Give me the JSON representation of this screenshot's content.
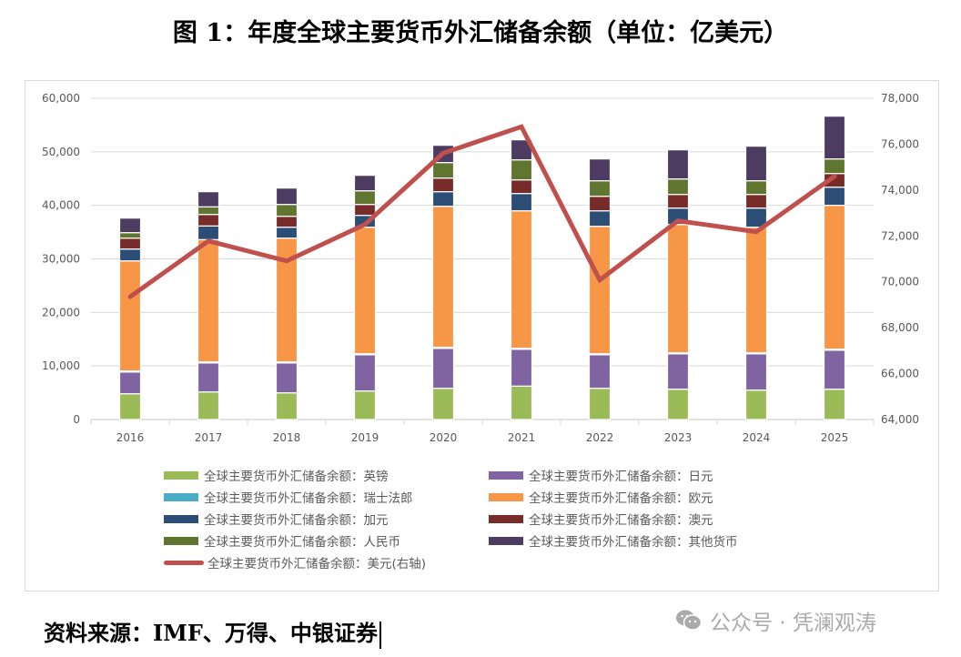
{
  "title": "图 1：年度全球主要货币外汇储备余额（单位：亿美元）",
  "source": "资料来源：IMF、万得、中银证券",
  "watermark": "公众号 · 凭澜观涛",
  "watermark_icon": "wechat-icon",
  "chart_data": {
    "type": "bar",
    "stacked": true,
    "title": "",
    "categories": [
      "2016",
      "2017",
      "2018",
      "2019",
      "2020",
      "2021",
      "2022",
      "2023",
      "2024",
      "2025"
    ],
    "ylim": [
      0,
      60000
    ],
    "yticks": [
      "0",
      "10,000",
      "20,000",
      "30,000",
      "40,000",
      "50,000",
      "60,000"
    ],
    "y2lim": [
      64000,
      78000
    ],
    "y2ticks": [
      "64,000",
      "66,000",
      "68,000",
      "70,000",
      "72,000",
      "74,000",
      "76,000",
      "78,000"
    ],
    "grid": true,
    "legend_placement": "bottom",
    "series": [
      {
        "name": "全球主要货币外汇储备余额：英镑",
        "color": "#9bbb59",
        "values": [
          4810,
          5150,
          4980,
          5320,
          5830,
          6240,
          5830,
          5660,
          5490,
          5660
        ]
      },
      {
        "name": "全球主要货币外汇储备余额：日元",
        "color": "#8064a2",
        "values": [
          4050,
          5410,
          5580,
          6770,
          7450,
          6870,
          6260,
          6600,
          6770,
          7280
        ]
      },
      {
        "name": "全球主要货币外汇储备余额：瑞士法郎",
        "color": "#4bacc6",
        "values": [
          200,
          200,
          200,
          200,
          200,
          200,
          200,
          200,
          200,
          200
        ]
      },
      {
        "name": "全球主要货币外汇储备余额：欧元",
        "color": "#f79646",
        "values": [
          20570,
          22840,
          23120,
          23630,
          26350,
          25670,
          23800,
          23970,
          23460,
          26860
        ]
      },
      {
        "name": "全球主要货币外汇储备余额：加元",
        "color": "#2c4d75",
        "values": [
          2210,
          2550,
          2040,
          2210,
          2720,
          3230,
          2890,
          3060,
          3570,
          3400
        ]
      },
      {
        "name": "全球主要货币外汇储备余额：澳元",
        "color": "#772c2a",
        "values": [
          2040,
          2150,
          2040,
          2040,
          2550,
          2550,
          2720,
          2550,
          2550,
          2550
        ]
      },
      {
        "name": "全球主要货币外汇储备余额：人民币",
        "color": "#5f7530",
        "values": [
          1020,
          1420,
          2210,
          2550,
          2890,
          3740,
          2890,
          2890,
          2550,
          2720
        ]
      },
      {
        "name": "全球主要货币外汇储备余额：其他货币",
        "color": "#4d3b62",
        "values": [
          2720,
          2830,
          3060,
          2890,
          3230,
          3740,
          4080,
          5440,
          6460,
          7990
        ]
      }
    ],
    "line_series": {
      "name": "全球主要货币外汇储备余额：美元(右轴)",
      "color": "#c0504d",
      "axis": "right",
      "values": [
        69350,
        71780,
        70910,
        72500,
        75610,
        76760,
        70080,
        72660,
        72180,
        74600
      ]
    }
  }
}
